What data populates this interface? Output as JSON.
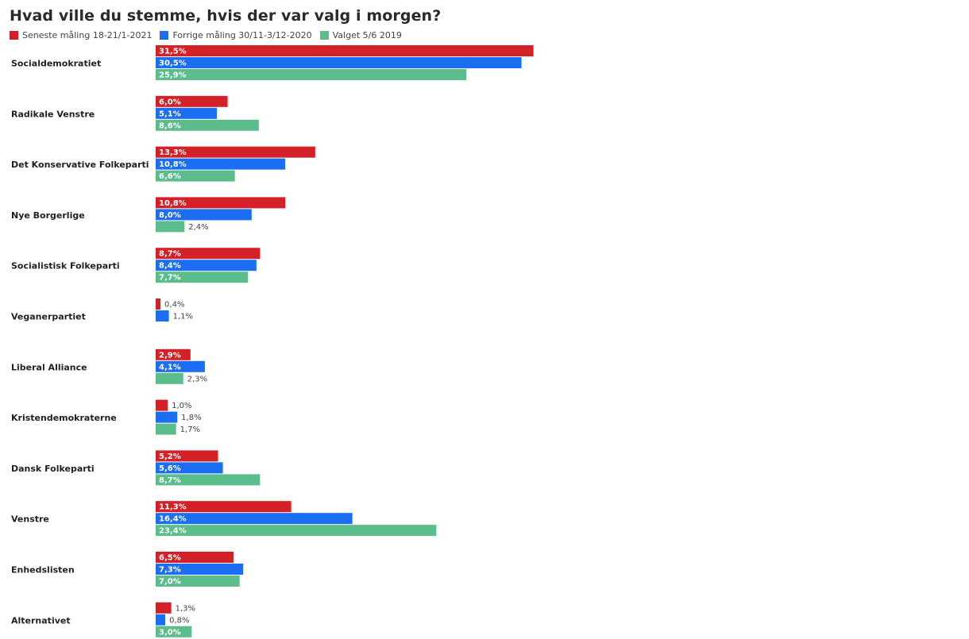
{
  "chart_data": {
    "type": "bar",
    "orientation": "horizontal",
    "title": "Hvad ville du stemme, hvis der var valg i morgen?",
    "legend_position": "top-left",
    "grid": false,
    "categories": [
      "Socialdemokratiet",
      "Radikale Venstre",
      "Det Konservative Folkeparti",
      "Nye Borgerlige",
      "Socialistisk Folkeparti",
      "Veganerpartiet",
      "Liberal Alliance",
      "Kristendemokraterne",
      "Dansk Folkeparti",
      "Venstre",
      "Enhedslisten",
      "Alternativet"
    ],
    "series": [
      {
        "name": "Seneste måling 18-21/1-2021",
        "color": "#d42027",
        "values": [
          31.5,
          6.0,
          13.3,
          10.8,
          8.7,
          0.4,
          2.9,
          1.0,
          5.2,
          11.3,
          6.5,
          1.3
        ],
        "labels": [
          "31,5%",
          "6,0%",
          "13,3%",
          "10,8%",
          "8,7%",
          "0,4%",
          "2,9%",
          "1,0%",
          "5,2%",
          "11,3%",
          "6,5%",
          "1,3%"
        ]
      },
      {
        "name": "Forrige måling 30/11-3/12-2020",
        "color": "#1b6ef2",
        "values": [
          30.5,
          5.1,
          10.8,
          8.0,
          8.4,
          1.1,
          4.1,
          1.8,
          5.6,
          16.4,
          7.3,
          0.8
        ],
        "labels": [
          "30,5%",
          "5,1%",
          "10,8%",
          "8,0%",
          "8,4%",
          "1,1%",
          "4,1%",
          "1,8%",
          "5,6%",
          "16,4%",
          "7,3%",
          "0,8%"
        ]
      },
      {
        "name": "Valget 5/6 2019",
        "color": "#5bbd8c",
        "values": [
          25.9,
          8.6,
          6.6,
          2.4,
          7.7,
          null,
          2.3,
          1.7,
          8.7,
          23.4,
          7.0,
          3.0
        ],
        "labels": [
          "25,9%",
          "8,6%",
          "6,6%",
          "2,4%",
          "7,7%",
          null,
          "2,3%",
          "1,7%",
          "8,7%",
          "23,4%",
          "7,0%",
          "3,0%"
        ]
      }
    ]
  }
}
